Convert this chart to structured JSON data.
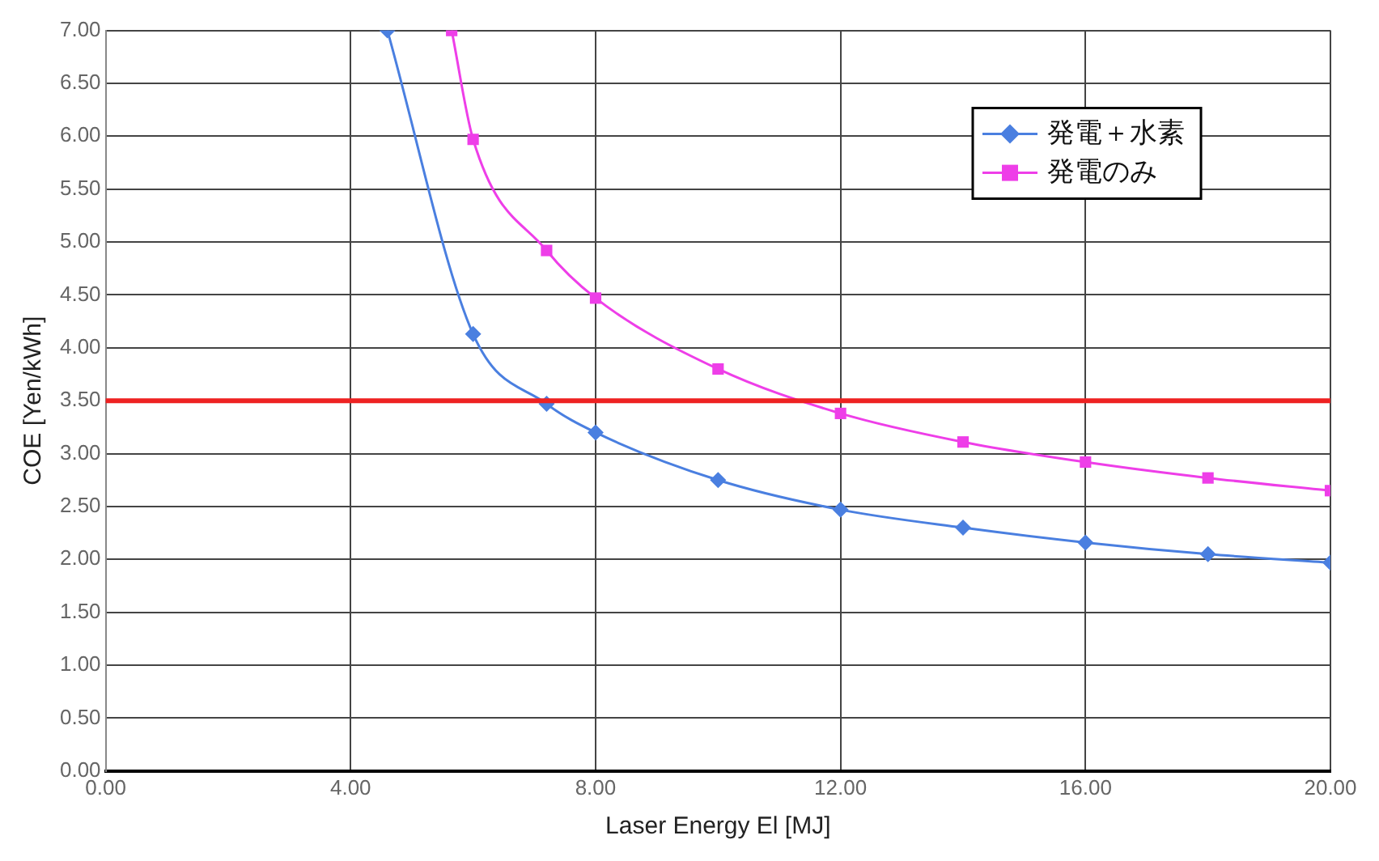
{
  "chart_data": {
    "type": "line",
    "xlabel": "Laser Energy El [MJ]",
    "ylabel": "COE [Yen/kWh]",
    "series": [
      {
        "name": "発電＋水素",
        "color": "#4a7fe0",
        "marker": "diamond",
        "x": [
          4.6,
          6,
          7.2,
          8,
          10,
          12,
          14,
          16,
          18,
          20
        ],
        "values": [
          7.0,
          4.13,
          3.47,
          3.2,
          2.75,
          2.47,
          2.3,
          2.16,
          2.05,
          1.97
        ]
      },
      {
        "name": "発電のみ",
        "color": "#ee3ee8",
        "marker": "square",
        "x": [
          5.65,
          6,
          7.2,
          8,
          10,
          12,
          14,
          16,
          18,
          20
        ],
        "values": [
          7.0,
          5.97,
          4.92,
          4.47,
          3.8,
          3.38,
          3.11,
          2.92,
          2.77,
          2.65
        ]
      }
    ],
    "xlim": [
      0,
      20
    ],
    "xticks": [
      {
        "value": 0,
        "label": "0.00"
      },
      {
        "value": 4,
        "label": "4.00"
      },
      {
        "value": 8,
        "label": "8.00"
      },
      {
        "value": 12,
        "label": "12.00"
      },
      {
        "value": 16,
        "label": "16.00"
      },
      {
        "value": 20,
        "label": "20.00"
      }
    ],
    "ylim": [
      0,
      7
    ],
    "yticks": [
      {
        "value": 0,
        "label": "0.00"
      },
      {
        "value": 0.5,
        "label": "0.50"
      },
      {
        "value": 1,
        "label": "1.00"
      },
      {
        "value": 1.5,
        "label": "1.50"
      },
      {
        "value": 2,
        "label": "2.00"
      },
      {
        "value": 2.5,
        "label": "2.50"
      },
      {
        "value": 3,
        "label": "3.00"
      },
      {
        "value": 3.5,
        "label": "3.50"
      },
      {
        "value": 4,
        "label": "4.00"
      },
      {
        "value": 4.5,
        "label": "4.50"
      },
      {
        "value": 5,
        "label": "5.00"
      },
      {
        "value": 5.5,
        "label": "5.50"
      },
      {
        "value": 6,
        "label": "6.00"
      },
      {
        "value": 6.5,
        "label": "6.50"
      },
      {
        "value": 7,
        "label": "7.00"
      }
    ],
    "ref_lines": [
      {
        "axis": "y",
        "value": 3.5,
        "color": "#ee2222"
      }
    ],
    "grid": true,
    "legend": "top right",
    "line_style": "solid"
  }
}
